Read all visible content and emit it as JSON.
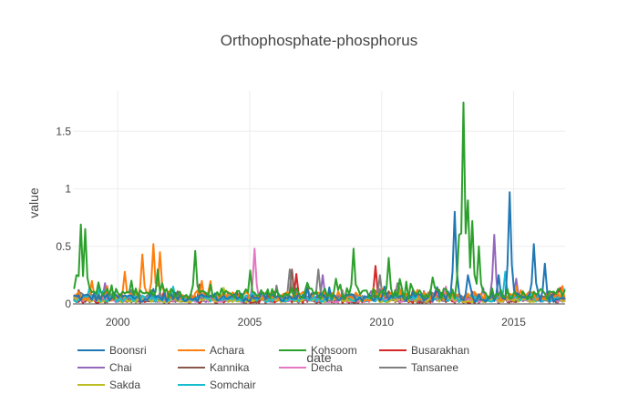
{
  "chart_data": {
    "type": "line",
    "title": "Orthophosphate-phosphorus",
    "xlabel": "date",
    "ylabel": "value",
    "xlim": [
      1998.3,
      2016.95
    ],
    "ylim": [
      0,
      1.85
    ],
    "x_ticks": [
      2000,
      2005,
      2010,
      2015
    ],
    "x_tick_labels": [
      "2000",
      "2005",
      "2010",
      "2015"
    ],
    "y_ticks": [
      0,
      0.5,
      1,
      1.5
    ],
    "y_tick_labels": [
      "0",
      "0.5",
      "1",
      "1.5"
    ],
    "grid": true,
    "legend_position": "bottom",
    "series": [
      {
        "name": "Boonsri",
        "color": "#1f77b4",
        "base": 0.05,
        "noise": 0.04,
        "peaks": [
          [
            2012.75,
            0.8
          ],
          [
            2013.3,
            0.25
          ],
          [
            2014.4,
            0.25
          ],
          [
            2014.85,
            0.97
          ],
          [
            2015.8,
            0.52
          ],
          [
            2016.2,
            0.35
          ]
        ]
      },
      {
        "name": "Achara",
        "color": "#ff7f0e",
        "base": 0.06,
        "noise": 0.04,
        "peaks": [
          [
            1999.0,
            0.2
          ],
          [
            2000.3,
            0.28
          ],
          [
            2000.9,
            0.43
          ],
          [
            2001.35,
            0.52
          ],
          [
            2001.6,
            0.45
          ],
          [
            2003.2,
            0.2
          ]
        ]
      },
      {
        "name": "Kohsoom",
        "color": "#2ca02c",
        "base": 0.08,
        "noise": 0.05,
        "peaks": [
          [
            1998.4,
            0.25
          ],
          [
            1998.6,
            0.69
          ],
          [
            1998.8,
            0.65
          ],
          [
            2001.5,
            0.3
          ],
          [
            2002.9,
            0.46
          ],
          [
            2005.0,
            0.29
          ],
          [
            2008.9,
            0.48
          ],
          [
            2010.3,
            0.4
          ],
          [
            2012.9,
            0.6
          ],
          [
            2013.1,
            1.75
          ],
          [
            2013.3,
            0.9
          ],
          [
            2013.45,
            0.72
          ],
          [
            2013.7,
            0.5
          ]
        ]
      },
      {
        "name": "Busarakhan",
        "color": "#d62728",
        "base": 0.03,
        "noise": 0.03,
        "peaks": [
          [
            2006.8,
            0.26
          ],
          [
            2009.8,
            0.33
          ],
          [
            2012.2,
            0.12
          ],
          [
            2016.8,
            0.14
          ]
        ]
      },
      {
        "name": "Chai",
        "color": "#9467bd",
        "base": 0.04,
        "noise": 0.03,
        "peaks": [
          [
            1999.5,
            0.18
          ],
          [
            2007.8,
            0.25
          ],
          [
            2014.3,
            0.6
          ],
          [
            2015.1,
            0.22
          ]
        ]
      },
      {
        "name": "Kannika",
        "color": "#8c564b",
        "base": 0.03,
        "noise": 0.03,
        "peaks": [
          [
            2003.1,
            0.17
          ],
          [
            2006.6,
            0.3
          ],
          [
            2010.5,
            0.12
          ]
        ]
      },
      {
        "name": "Decha",
        "color": "#e377c2",
        "base": 0.03,
        "noise": 0.02,
        "peaks": [
          [
            2005.2,
            0.48
          ],
          [
            2008.5,
            0.12
          ],
          [
            2012.4,
            0.15
          ]
        ]
      },
      {
        "name": "Tansanee",
        "color": "#7f7f7f",
        "base": 0.05,
        "noise": 0.03,
        "peaks": [
          [
            2006.5,
            0.3
          ],
          [
            2007.6,
            0.3
          ],
          [
            2009.9,
            0.25
          ],
          [
            2010.6,
            0.18
          ]
        ]
      },
      {
        "name": "Sakda",
        "color": "#bcbd22",
        "base": 0.03,
        "noise": 0.02,
        "peaks": [
          [
            2004.0,
            0.14
          ],
          [
            2007.2,
            0.15
          ],
          [
            2010.7,
            0.1
          ]
        ]
      },
      {
        "name": "Somchair",
        "color": "#17becf",
        "base": 0.04,
        "noise": 0.03,
        "peaks": [
          [
            1998.9,
            0.14
          ],
          [
            2002.1,
            0.15
          ],
          [
            2014.7,
            0.28
          ],
          [
            2015.7,
            0.1
          ]
        ]
      }
    ]
  }
}
